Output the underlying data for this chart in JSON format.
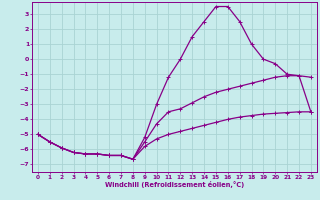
{
  "background_color": "#c8ecec",
  "grid_color": "#aad4d4",
  "line_color": "#880088",
  "xlabel": "Windchill (Refroidissement éolien,°C)",
  "xlim": [
    -0.5,
    23.5
  ],
  "ylim": [
    -7.5,
    3.8
  ],
  "yticks": [
    3,
    2,
    1,
    0,
    -1,
    -2,
    -3,
    -4,
    -5,
    -6,
    -7
  ],
  "xticks": [
    0,
    1,
    2,
    3,
    4,
    5,
    6,
    7,
    8,
    9,
    10,
    11,
    12,
    13,
    14,
    15,
    16,
    17,
    18,
    19,
    20,
    21,
    22,
    23
  ],
  "series": [
    {
      "x": [
        0,
        1,
        2,
        3,
        4,
        5,
        6,
        7,
        8,
        9,
        10,
        11,
        12,
        13,
        14,
        15,
        16,
        17,
        18,
        19,
        20,
        21,
        22,
        23
      ],
      "y": [
        -5.0,
        -5.5,
        -5.9,
        -6.2,
        -6.3,
        -6.3,
        -6.4,
        -6.4,
        -6.65,
        -5.8,
        -5.3,
        -5.0,
        -4.8,
        -4.6,
        -4.4,
        -4.2,
        -4.0,
        -3.85,
        -3.75,
        -3.65,
        -3.6,
        -3.55,
        -3.5,
        -3.5
      ]
    },
    {
      "x": [
        0,
        1,
        2,
        3,
        4,
        5,
        6,
        7,
        8,
        9,
        10,
        11,
        12,
        13,
        14,
        15,
        16,
        17,
        18,
        19,
        20,
        21,
        22,
        23
      ],
      "y": [
        -5.0,
        -5.5,
        -5.9,
        -6.2,
        -6.3,
        -6.3,
        -6.4,
        -6.4,
        -6.65,
        -5.5,
        -4.3,
        -3.5,
        -3.3,
        -2.9,
        -2.5,
        -2.2,
        -2.0,
        -1.8,
        -1.6,
        -1.4,
        -1.2,
        -1.1,
        -1.1,
        -1.2
      ]
    },
    {
      "x": [
        0,
        1,
        2,
        3,
        4,
        5,
        6,
        7,
        8,
        9,
        10,
        11,
        12,
        13,
        14,
        15,
        16,
        17,
        18,
        19,
        20,
        21,
        22,
        23
      ],
      "y": [
        -5.0,
        -5.5,
        -5.9,
        -6.2,
        -6.3,
        -6.3,
        -6.4,
        -6.4,
        -6.65,
        -5.2,
        -3.0,
        -1.2,
        -0.0,
        1.5,
        2.5,
        3.5,
        3.5,
        2.5,
        1.0,
        0.0,
        -0.3,
        -1.0,
        -1.1,
        -3.5
      ]
    }
  ]
}
